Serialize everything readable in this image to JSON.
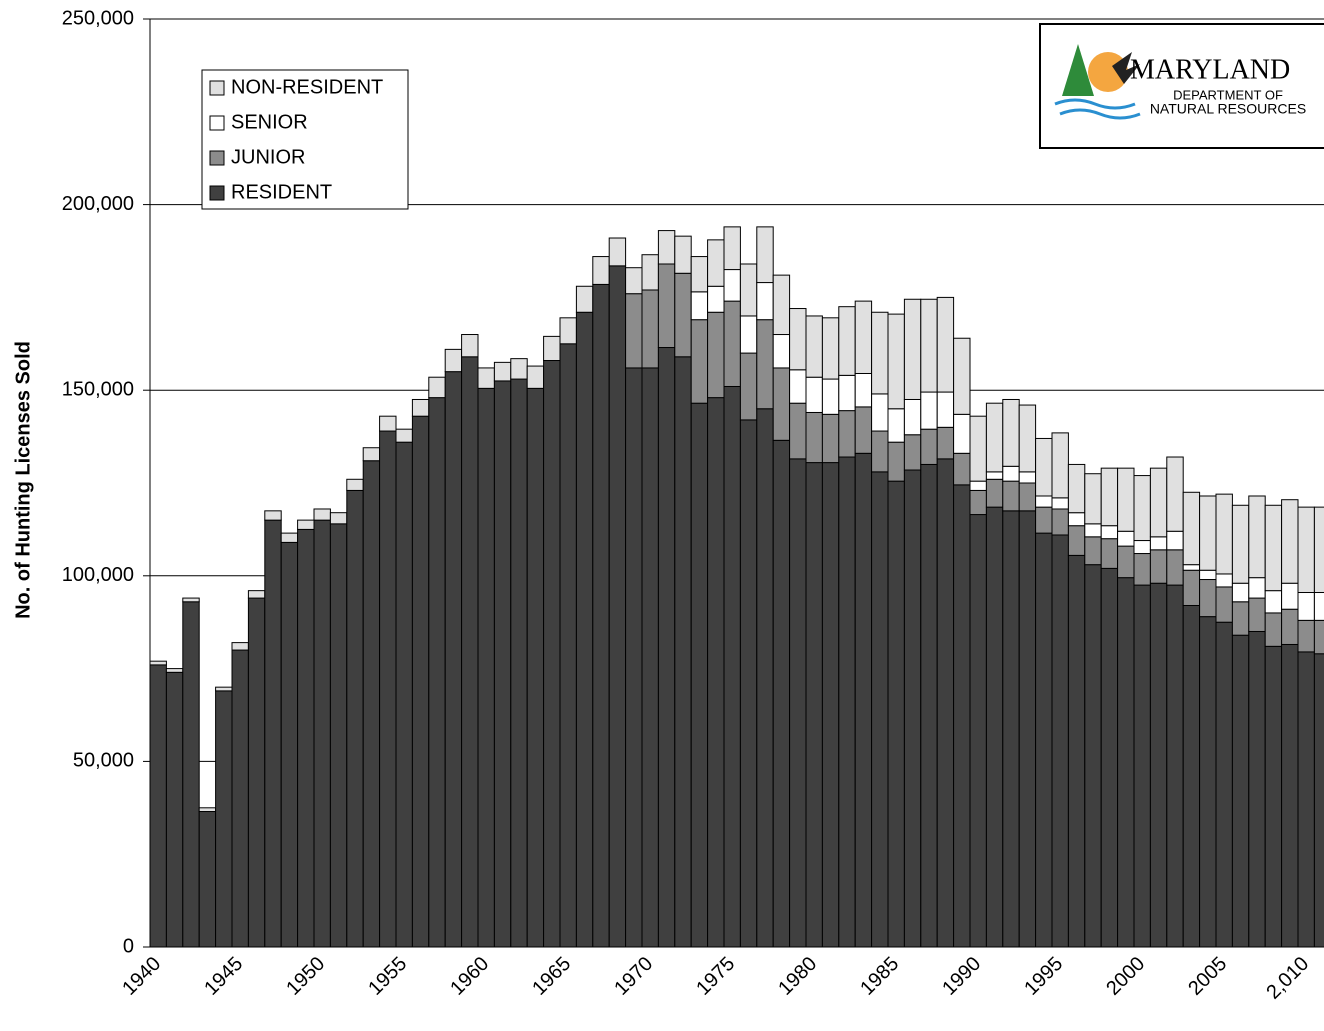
{
  "chart_data": {
    "type": "stacked_bar",
    "y_label": "No. of Hunting Licenses Sold",
    "categories": [
      "1940",
      null,
      null,
      null,
      null,
      "1945",
      null,
      null,
      null,
      null,
      "1950",
      null,
      null,
      null,
      null,
      "1955",
      null,
      null,
      null,
      null,
      "1960",
      null,
      null,
      null,
      null,
      "1965",
      null,
      null,
      null,
      null,
      "1970",
      null,
      null,
      null,
      null,
      "1975",
      null,
      null,
      null,
      null,
      "1980",
      null,
      null,
      null,
      null,
      "1985",
      null,
      null,
      null,
      null,
      "1990",
      null,
      null,
      null,
      null,
      "1995",
      null,
      null,
      null,
      null,
      "2000",
      null,
      null,
      null,
      null,
      "2005",
      null,
      null,
      null,
      null,
      "2,010",
      null
    ],
    "series": [
      {
        "name": "RESIDENT",
        "color": "#404040",
        "values": [
          76000,
          74000,
          93000,
          36500,
          69000,
          80000,
          94000,
          115000,
          109000,
          112500,
          115000,
          114000,
          123000,
          131000,
          139000,
          136000,
          143000,
          148000,
          155000,
          159000,
          150500,
          152500,
          153000,
          150500,
          158000,
          162500,
          171000,
          178500,
          183500,
          156000,
          156000,
          161500,
          159000,
          146500,
          148000,
          151000,
          142000,
          145000,
          136500,
          131500,
          130500,
          130500,
          132000,
          133000,
          128000,
          125500,
          128500,
          130000,
          131500,
          124500,
          116500,
          118500,
          117500,
          117500,
          111500,
          111000,
          105500,
          103000,
          102000,
          99500,
          97500,
          98000,
          97500,
          92000,
          89000,
          87500,
          84000,
          85000,
          81000,
          81500,
          79500,
          79000
        ]
      },
      {
        "name": "JUNIOR",
        "color": "#8c8c8c",
        "values": [
          0,
          0,
          0,
          0,
          0,
          0,
          0,
          0,
          0,
          0,
          0,
          0,
          0,
          0,
          0,
          0,
          0,
          0,
          0,
          0,
          0,
          0,
          0,
          0,
          0,
          0,
          0,
          0,
          0,
          20000,
          21000,
          22500,
          22500,
          22500,
          23000,
          23000,
          18000,
          24000,
          19500,
          15000,
          13500,
          13000,
          12500,
          12500,
          11000,
          10500,
          9500,
          9500,
          8500,
          8500,
          6500,
          7500,
          8000,
          7500,
          7000,
          7000,
          8000,
          7500,
          8000,
          8500,
          8500,
          9000,
          9500,
          9500,
          10000,
          9500,
          9000,
          9000,
          9000,
          9500,
          8500,
          9000
        ]
      },
      {
        "name": "SENIOR",
        "color": "#ffffff",
        "values": [
          0,
          0,
          0,
          0,
          0,
          0,
          0,
          0,
          0,
          0,
          0,
          0,
          0,
          0,
          0,
          0,
          0,
          0,
          0,
          0,
          0,
          0,
          0,
          0,
          0,
          0,
          0,
          0,
          0,
          0,
          0,
          0,
          0,
          7500,
          7000,
          8500,
          10000,
          10000,
          9000,
          9000,
          9500,
          9500,
          9500,
          9000,
          10000,
          9000,
          9500,
          10000,
          9500,
          10500,
          2500,
          2000,
          4000,
          3000,
          3000,
          3000,
          3500,
          3500,
          3500,
          4000,
          3500,
          3500,
          5000,
          1500,
          2500,
          3500,
          5000,
          5500,
          6000,
          7000,
          7500,
          7500
        ]
      },
      {
        "name": "NON-RESIDENT",
        "color": "#e0e0e0",
        "values": [
          1000,
          1000,
          1000,
          1000,
          1000,
          2000,
          2000,
          2500,
          2500,
          2500,
          3000,
          3000,
          3000,
          3500,
          4000,
          3500,
          4500,
          5500,
          6000,
          6000,
          5500,
          5000,
          5500,
          6000,
          6500,
          7000,
          7000,
          7500,
          7500,
          7000,
          9500,
          9000,
          10000,
          9500,
          12500,
          11500,
          14000,
          15000,
          16000,
          16500,
          16500,
          16500,
          18500,
          19500,
          22000,
          25500,
          27000,
          25000,
          25500,
          20500,
          17500,
          18500,
          18000,
          18000,
          15500,
          17500,
          13000,
          13500,
          15500,
          17000,
          17500,
          18500,
          20000,
          19500,
          20000,
          21500,
          21000,
          22000,
          23000,
          22500,
          23000,
          23000
        ]
      }
    ],
    "ylim": [
      0,
      250000
    ],
    "yticks": [
      0,
      {
        "value": 50000,
        "label": "50,000"
      },
      {
        "value": 100000,
        "label": "100,000"
      },
      {
        "value": 150000,
        "label": "150,000"
      },
      {
        "value": 200000,
        "label": "200,000"
      },
      {
        "value": 250000,
        "label": "250,000"
      }
    ],
    "grid": true,
    "legend": "upper left"
  },
  "logo": {
    "name": "MARYLAND",
    "line1": "DEPARTMENT OF",
    "line2": "NATURAL RESOURCES"
  }
}
